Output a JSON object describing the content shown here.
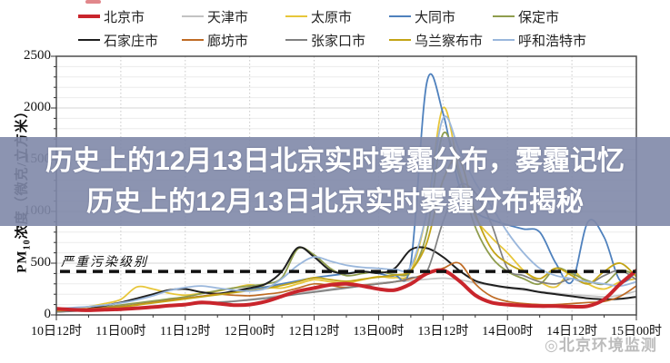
{
  "overlay": {
    "line1": "历史上的12月13日北京实时雾霾分布，雾霾记忆",
    "line2": "历史上的12月13日北京实时雾霾分布揭秘",
    "bg": "rgba(127,136,168,0.9)"
  },
  "watermark": {
    "text": "◎北京环境监测"
  },
  "legend": {
    "rows": [
      [
        0,
        1,
        2,
        3,
        4
      ],
      [
        5,
        6,
        7,
        8,
        9
      ]
    ]
  },
  "chart_data": {
    "type": "line",
    "title": "",
    "ylabel_parts": {
      "prefix": "PM",
      "sub": "10",
      "suffix": "浓度（微克/立方米）"
    },
    "ylim": [
      0,
      2500
    ],
    "y_ticks": [
      0,
      500,
      1000,
      1500,
      2000,
      2500
    ],
    "xlim_hours": [
      0,
      108
    ],
    "x_tick_hours": [
      0,
      12,
      24,
      36,
      48,
      60,
      72,
      84,
      96,
      108
    ],
    "x_tick_labels": [
      "10日12时",
      "11日00时",
      "11日12时",
      "12日00时",
      "12日12时",
      "13日00时",
      "13日12时",
      "14日00时",
      "14日12时",
      "15日00时"
    ],
    "sample_interval_hours": 3,
    "grid": {
      "y_minor": 100,
      "y_major": 500,
      "x_major_hours": 12,
      "grid_on": true
    },
    "legend_position": "top",
    "annotation": {
      "label": "严重污染级别",
      "value": 420,
      "style": "dashed-black"
    },
    "draw_order": [
      1,
      2,
      3,
      4,
      5,
      6,
      7,
      8,
      9,
      0
    ],
    "series": [
      {
        "name": "北京市",
        "color": "#c9252c",
        "width": 4,
        "values": [
          60,
          50,
          45,
          50,
          55,
          65,
          75,
          90,
          100,
          120,
          110,
          95,
          100,
          130,
          180,
          230,
          260,
          290,
          300,
          280,
          250,
          240,
          300,
          400,
          430,
          330,
          190,
          120,
          100,
          90,
          85,
          85,
          80,
          85,
          150,
          300,
          430
        ]
      },
      {
        "name": "天津市",
        "color": "#c3c3c3",
        "width": 1.7,
        "values": [
          40,
          45,
          50,
          55,
          60,
          70,
          85,
          95,
          105,
          115,
          125,
          135,
          150,
          170,
          190,
          210,
          230,
          250,
          270,
          290,
          310,
          320,
          330,
          345,
          355,
          340,
          310,
          285,
          260,
          240,
          225,
          210,
          195,
          185,
          175,
          190,
          230
        ]
      },
      {
        "name": "太原市",
        "color": "#e7c63a",
        "width": 1.8,
        "values": [
          50,
          60,
          80,
          110,
          150,
          270,
          250,
          210,
          190,
          210,
          230,
          260,
          290,
          270,
          260,
          300,
          340,
          320,
          310,
          340,
          370,
          360,
          420,
          1000,
          2000,
          1400,
          950,
          750,
          600,
          430,
          320,
          270,
          420,
          300,
          250,
          320,
          350
        ]
      },
      {
        "name": "大同市",
        "color": "#4f81bd",
        "width": 1.8,
        "values": [
          40,
          45,
          55,
          65,
          80,
          100,
          120,
          140,
          160,
          180,
          200,
          220,
          250,
          270,
          300,
          330,
          360,
          380,
          400,
          420,
          400,
          380,
          500,
          2250,
          1950,
          1250,
          1000,
          920,
          870,
          830,
          800,
          500,
          320,
          900,
          750,
          330,
          420
        ]
      },
      {
        "name": "保定市",
        "color": "#8f9d4e",
        "width": 1.8,
        "values": [
          40,
          50,
          60,
          75,
          95,
          115,
          135,
          155,
          175,
          205,
          235,
          260,
          280,
          300,
          360,
          640,
          580,
          450,
          380,
          400,
          420,
          390,
          420,
          800,
          1750,
          1350,
          850,
          560,
          420,
          350,
          300,
          450,
          400,
          330,
          300,
          430,
          380
        ]
      },
      {
        "name": "石家庄市",
        "color": "#1f1f1f",
        "width": 2,
        "values": [
          30,
          40,
          60,
          90,
          120,
          160,
          200,
          240,
          250,
          220,
          205,
          230,
          260,
          300,
          420,
          650,
          560,
          430,
          400,
          420,
          405,
          450,
          630,
          645,
          560,
          430,
          330,
          290,
          265,
          250,
          220,
          200,
          180,
          160,
          150,
          155,
          175
        ]
      },
      {
        "name": "廊坊市",
        "color": "#bf6b24",
        "width": 1.7,
        "values": [
          50,
          55,
          60,
          70,
          80,
          100,
          120,
          140,
          160,
          180,
          200,
          190,
          185,
          200,
          220,
          260,
          300,
          285,
          265,
          285,
          300,
          320,
          350,
          400,
          450,
          500,
          300,
          180,
          130,
          110,
          100,
          100,
          110,
          120,
          130,
          180,
          280
        ]
      },
      {
        "name": "张家口市",
        "color": "#808080",
        "width": 1.7,
        "values": [
          30,
          35,
          40,
          50,
          60,
          70,
          80,
          90,
          100,
          110,
          120,
          130,
          145,
          160,
          180,
          200,
          220,
          240,
          260,
          280,
          300,
          320,
          360,
          420,
          900,
          1250,
          1180,
          880,
          450,
          380,
          320,
          300,
          350,
          300,
          380,
          430,
          340
        ]
      },
      {
        "name": "乌兰察布市",
        "color": "#c3a416",
        "width": 1.8,
        "values": [
          40,
          45,
          50,
          60,
          75,
          95,
          115,
          135,
          155,
          175,
          195,
          215,
          235,
          255,
          285,
          320,
          360,
          340,
          325,
          345,
          365,
          385,
          430,
          700,
          1300,
          1500,
          980,
          640,
          500,
          420,
          350,
          450,
          380,
          300,
          420,
          500,
          370
        ]
      },
      {
        "name": "呼和浩特市",
        "color": "#9ab7dc",
        "width": 1.8,
        "values": [
          60,
          70,
          80,
          95,
          115,
          145,
          185,
          235,
          265,
          280,
          260,
          240,
          230,
          255,
          350,
          480,
          560,
          520,
          480,
          460,
          450,
          440,
          470,
          1000,
          1900,
          1600,
          1280,
          1050,
          800,
          600,
          450,
          380,
          350,
          320,
          300,
          280,
          320
        ]
      }
    ]
  }
}
